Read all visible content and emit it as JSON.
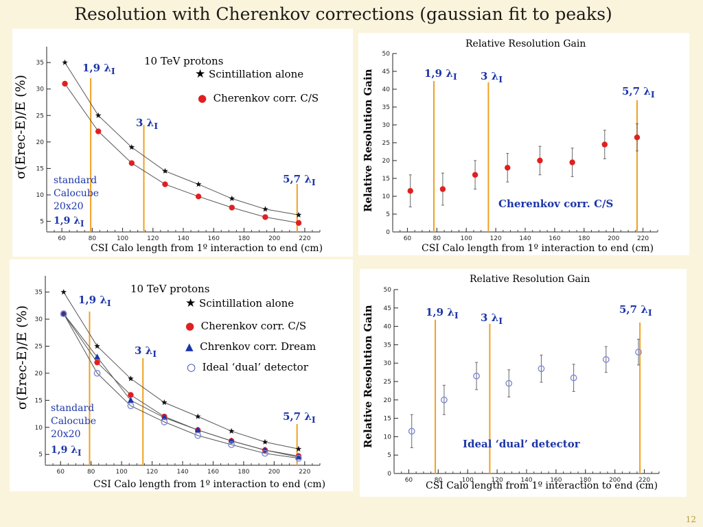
{
  "slide": {
    "title": "Resolution with  Cherenkov  corrections (gaussian fit to peaks)",
    "page_number": "12"
  },
  "colors": {
    "background": "#fbf4dc",
    "vline": "#f0a020",
    "red": "#e02020",
    "blue": "#1c35a8",
    "hollow": "#7f88d6"
  },
  "chart_data": [
    {
      "id": "res1",
      "type": "line",
      "ylabel": "σ(Erec-E)/E  (%)",
      "xlabel": "CSI Calo length from 1º interaction to end (cm)",
      "xlim": [
        50,
        230
      ],
      "ylim": [
        3,
        38
      ],
      "xticks": [
        60,
        80,
        100,
        120,
        140,
        160,
        180,
        200,
        220
      ],
      "yticks": [
        5,
        10,
        15,
        20,
        25,
        30,
        35
      ],
      "annotation_title": "10 TeV protons",
      "side_text": [
        "standard",
        "Calocube",
        "20x20"
      ],
      "vlines": [
        {
          "x": 79,
          "label": "1,9 λ"
        },
        {
          "x": 114,
          "label": "3 λ"
        },
        {
          "x": 215,
          "label": "5,7 λ"
        }
      ],
      "series": [
        {
          "name": "Scintillation alone",
          "marker": "star",
          "x": [
            62,
            84,
            106,
            128,
            150,
            172,
            194,
            216
          ],
          "y": [
            35,
            25,
            19,
            14.5,
            12,
            9.3,
            7.3,
            6.2
          ]
        },
        {
          "name": "Cherenkov corr. C/S",
          "marker": "red",
          "x": [
            62,
            84,
            106,
            128,
            150,
            172,
            194,
            216
          ],
          "y": [
            31,
            22,
            16,
            12,
            9.7,
            7.6,
            5.8,
            4.7
          ]
        }
      ]
    },
    {
      "id": "gain1",
      "type": "scatter",
      "title": "Relative Resolution  Gain",
      "ylabel": "Relative Resolution  Gain",
      "xlabel": "CSI Calo length from 1º interaction to end (cm)",
      "xlim": [
        50,
        230
      ],
      "ylim": [
        0,
        50
      ],
      "xticks": [
        60,
        80,
        100,
        120,
        140,
        160,
        180,
        200,
        220
      ],
      "yticks": [
        0,
        5,
        10,
        15,
        20,
        25,
        30,
        35,
        40,
        45,
        50
      ],
      "series_label": "Cherenkov corr. C/S",
      "vlines": [
        {
          "x": 78,
          "label": "1,9 λ"
        },
        {
          "x": 115,
          "label": "3 λ"
        },
        {
          "x": 216,
          "label": "5,7 λ"
        }
      ],
      "series": [
        {
          "name": "Cherenkov corr. C/S",
          "marker": "red",
          "x": [
            62,
            84,
            106,
            128,
            150,
            172,
            194,
            216
          ],
          "y": [
            11.5,
            12,
            16,
            18,
            20,
            19.5,
            24.5,
            26.5
          ],
          "err": [
            4.5,
            4.5,
            4,
            4,
            4,
            4,
            4,
            3.8
          ]
        }
      ]
    },
    {
      "id": "res2",
      "type": "line",
      "ylabel": "σ(Erec-E)/E  (%)",
      "xlabel": "CSI Calo length from 1º interaction to end (cm)",
      "xlim": [
        50,
        230
      ],
      "ylim": [
        3,
        38
      ],
      "xticks": [
        60,
        80,
        100,
        120,
        140,
        160,
        180,
        200,
        220
      ],
      "yticks": [
        5,
        10,
        15,
        20,
        25,
        30,
        35
      ],
      "annotation_title": "10 TeV protons",
      "side_text": [
        "standard",
        "Calocube",
        "20x20"
      ],
      "vlines": [
        {
          "x": 79,
          "label": "1,9 λ"
        },
        {
          "x": 114,
          "label": "3 λ"
        },
        {
          "x": 215,
          "label": "5,7 λ"
        }
      ],
      "series": [
        {
          "name": "Scintillation alone",
          "marker": "star",
          "x": [
            62,
            84,
            106,
            128,
            150,
            172,
            194,
            216
          ],
          "y": [
            35,
            25,
            19,
            14.6,
            12,
            9.3,
            7.3,
            6
          ]
        },
        {
          "name": "Cherenkov corr. C/S",
          "marker": "red",
          "x": [
            62,
            84,
            106,
            128,
            150,
            172,
            194,
            216
          ],
          "y": [
            31,
            22,
            16,
            12,
            9.5,
            7.5,
            5.8,
            4.7
          ]
        },
        {
          "name": "Chrenkov corr.  Dream",
          "marker": "tri",
          "x": [
            62,
            84,
            106,
            128,
            150,
            172,
            194,
            216
          ],
          "y": [
            31,
            23,
            15,
            11.8,
            9.5,
            7.5,
            5.8,
            4.5
          ]
        },
        {
          "name": "Ideal ‘dual’ detector",
          "marker": "circle",
          "x": [
            62,
            84,
            106,
            128,
            150,
            172,
            194,
            216
          ],
          "y": [
            31,
            20,
            14,
            11,
            8.5,
            6.8,
            5.2,
            4.3
          ]
        }
      ]
    },
    {
      "id": "gain2",
      "type": "scatter",
      "title": "Relative Resolution  Gain",
      "ylabel": "Relative Resolution  Gain",
      "xlabel": "CSI Calo length from 1º interaction to end (cm)",
      "xlim": [
        50,
        230
      ],
      "ylim": [
        0,
        50
      ],
      "xticks": [
        60,
        80,
        100,
        120,
        140,
        160,
        180,
        200,
        220
      ],
      "yticks": [
        0,
        5,
        10,
        15,
        20,
        25,
        30,
        35,
        40,
        45,
        50
      ],
      "series_label": "Ideal ‘dual’ detector",
      "vlines": [
        {
          "x": 78,
          "label": "1,9 λ"
        },
        {
          "x": 115,
          "label": "3 λ"
        },
        {
          "x": 217,
          "label": "5,7 λ"
        }
      ],
      "series": [
        {
          "name": "Ideal ‘dual’ detector",
          "marker": "circle",
          "x": [
            62,
            84,
            106,
            128,
            150,
            172,
            194,
            216
          ],
          "y": [
            11.5,
            20,
            26.5,
            24.5,
            28.5,
            26,
            31,
            33
          ],
          "err": [
            4.5,
            4,
            3.7,
            3.7,
            3.7,
            3.7,
            3.5,
            3.5
          ]
        }
      ]
    }
  ]
}
